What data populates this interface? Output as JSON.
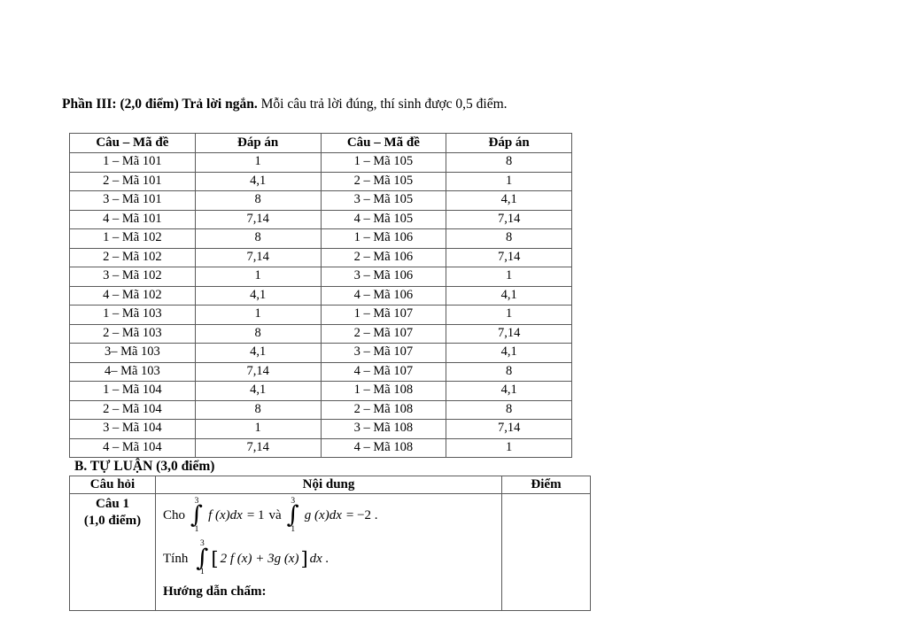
{
  "heading": {
    "bold": "Phần III: (2,0 điểm) Trả lời ngắn.",
    "regular": "Mỗi câu trả lời đúng, thí sinh được 0,5 điểm."
  },
  "answer_table": {
    "headers": [
      "Câu – Mã đề",
      "Đáp án",
      "Câu – Mã đề",
      "Đáp án"
    ],
    "rows": [
      [
        "1 – Mã 101",
        "1",
        "1 – Mã 105",
        "8"
      ],
      [
        "2 – Mã 101",
        "4,1",
        "2 – Mã 105",
        "1"
      ],
      [
        "3 – Mã 101",
        "8",
        "3 – Mã 105",
        "4,1"
      ],
      [
        "4 – Mã 101",
        "7,14",
        "4 – Mã 105",
        "7,14"
      ],
      [
        "1 – Mã 102",
        "8",
        "1 – Mã 106",
        "8"
      ],
      [
        "2 – Mã 102",
        "7,14",
        "2 – Mã 106",
        "7,14"
      ],
      [
        "3 – Mã 102",
        "1",
        "3 – Mã 106",
        "1"
      ],
      [
        "4 – Mã 102",
        "4,1",
        "4 – Mã 106",
        "4,1"
      ],
      [
        "1 – Mã 103",
        "1",
        "1 – Mã 107",
        "1"
      ],
      [
        "2 – Mã 103",
        "8",
        "2 – Mã 107",
        "7,14"
      ],
      [
        "3– Mã 103",
        "4,1",
        "3 – Mã 107",
        "4,1"
      ],
      [
        "4– Mã 103",
        "7,14",
        "4 – Mã 107",
        "8"
      ],
      [
        "1 – Mã 104",
        "4,1",
        "1 – Mã 108",
        "4,1"
      ],
      [
        "2 – Mã 104",
        "8",
        "2 – Mã 108",
        "8"
      ],
      [
        "3 – Mã 104",
        "1",
        "3 – Mã 108",
        "7,14"
      ],
      [
        "4 – Mã 104",
        "7,14",
        "4 – Mã 108",
        "1"
      ]
    ]
  },
  "section_b_title": "B. TỰ LUẬN (3,0 điểm)",
  "essay_table": {
    "headers": [
      "Câu hỏi",
      "Nội dung",
      "Điểm"
    ],
    "question": {
      "label": "Câu 1",
      "points": "(1,0 điểm)"
    },
    "content": {
      "line1": {
        "cho": "Cho",
        "int_sup": "3",
        "int_sub": "1",
        "expr1": "f (x)dx",
        "eq1": "= 1",
        "va": "và",
        "expr2": "g (x)dx",
        "eq2": "= −2 ."
      },
      "line2": {
        "tinh": "Tính",
        "int_sup": "3",
        "int_sub": "1",
        "open": "[",
        "expr": "2 f (x) + 3g (x)",
        "close": "]",
        "tail": "dx ."
      },
      "line3": "Hướng dẫn chấm:"
    },
    "score": ""
  },
  "colors": {
    "text": "#000000",
    "border": "#5a5a5a",
    "background": "#ffffff"
  }
}
